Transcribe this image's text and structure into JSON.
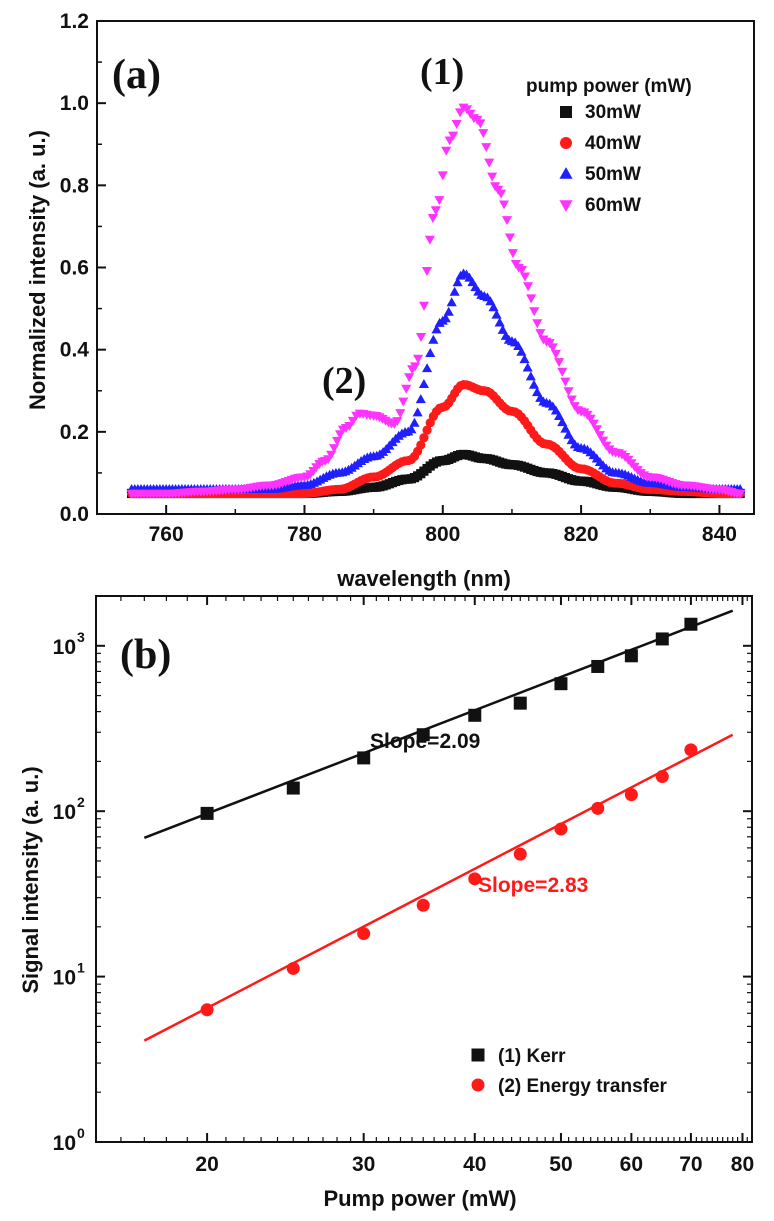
{
  "colors": {
    "black": "#111111",
    "red": "#ff1a1a",
    "blue": "#1f1fff",
    "magenta": "#ff33ff"
  },
  "chart_data": [
    {
      "type": "scatter",
      "panel_label": "(a)",
      "xlabel": "wavelength (nm)",
      "ylabel": "Normalized intensity (a. u.)",
      "xlim": [
        750,
        845
      ],
      "ylim": [
        0.0,
        1.2
      ],
      "xticks": [
        "760",
        "780",
        "800",
        "820",
        "840"
      ],
      "yticks": [
        "0.0",
        "0.2",
        "0.4",
        "0.6",
        "0.8",
        "1.0",
        "1.2"
      ],
      "xtick_values": [
        760,
        780,
        800,
        820,
        840
      ],
      "ytick_values": [
        0.0,
        0.2,
        0.4,
        0.6,
        0.8,
        1.0,
        1.2
      ],
      "legend": {
        "title": "pump power (mW)",
        "position": "top-right"
      },
      "annotations": [
        {
          "text": "(1)",
          "x": 803,
          "y": 1.06
        },
        {
          "text": "(2)",
          "x": 788,
          "y": 0.33
        }
      ],
      "series": [
        {
          "name": "30mW",
          "marker": "square",
          "color": "#111111",
          "x": [
            755,
            760,
            765,
            770,
            775,
            780,
            785,
            790,
            795,
            800,
            803,
            806,
            810,
            815,
            820,
            825,
            830,
            835,
            840,
            843
          ],
          "y": [
            0.05,
            0.05,
            0.05,
            0.05,
            0.05,
            0.05,
            0.055,
            0.065,
            0.085,
            0.13,
            0.145,
            0.135,
            0.12,
            0.1,
            0.08,
            0.065,
            0.055,
            0.05,
            0.05,
            0.05
          ]
        },
        {
          "name": "40mW",
          "marker": "circle",
          "color": "#ff1a1a",
          "x": [
            755,
            760,
            765,
            770,
            775,
            780,
            785,
            790,
            795,
            800,
            803,
            806,
            810,
            815,
            820,
            825,
            830,
            835,
            840,
            843
          ],
          "y": [
            0.05,
            0.05,
            0.05,
            0.05,
            0.05,
            0.05,
            0.06,
            0.09,
            0.13,
            0.26,
            0.315,
            0.3,
            0.25,
            0.17,
            0.11,
            0.075,
            0.06,
            0.055,
            0.05,
            0.05
          ]
        },
        {
          "name": "50mW",
          "marker": "triangle-up",
          "color": "#1f1fff",
          "x": [
            755,
            760,
            765,
            770,
            775,
            780,
            785,
            790,
            795,
            800,
            803,
            806,
            810,
            815,
            820,
            825,
            830,
            835,
            840,
            843
          ],
          "y": [
            0.06,
            0.06,
            0.06,
            0.06,
            0.06,
            0.07,
            0.1,
            0.14,
            0.2,
            0.47,
            0.585,
            0.53,
            0.42,
            0.27,
            0.16,
            0.1,
            0.075,
            0.065,
            0.06,
            0.06
          ]
        },
        {
          "name": "60mW",
          "marker": "triangle-down",
          "color": "#ff33ff",
          "x": [
            755,
            760,
            765,
            770,
            775,
            780,
            783,
            786,
            788,
            790,
            793,
            796,
            799,
            801,
            803,
            805,
            808,
            811,
            815,
            820,
            825,
            830,
            835,
            840,
            843
          ],
          "y": [
            0.05,
            0.05,
            0.055,
            0.06,
            0.07,
            0.09,
            0.13,
            0.21,
            0.245,
            0.24,
            0.22,
            0.36,
            0.74,
            0.91,
            0.99,
            0.96,
            0.79,
            0.6,
            0.42,
            0.25,
            0.15,
            0.09,
            0.07,
            0.06,
            0.05
          ]
        }
      ]
    },
    {
      "type": "scatter",
      "panel_label": "(b)",
      "xlabel": "Pump power (mW)",
      "ylabel": "Signal intensity (a. u.)",
      "xscale": "log",
      "yscale": "log",
      "xlim": [
        15,
        82
      ],
      "ylim": [
        1,
        2000
      ],
      "xticks": [
        "20",
        "30",
        "40",
        "50",
        "60",
        "70",
        "80"
      ],
      "xtick_values": [
        20,
        30,
        40,
        50,
        60,
        70,
        80
      ],
      "yticks": [
        {
          "base": "10",
          "exp": "0",
          "value": 1
        },
        {
          "base": "10",
          "exp": "1",
          "value": 10
        },
        {
          "base": "10",
          "exp": "2",
          "value": 100
        },
        {
          "base": "10",
          "exp": "3",
          "value": 1000
        }
      ],
      "legend": {
        "position": "bottom-right"
      },
      "series": [
        {
          "name": "(1) Kerr",
          "marker": "square",
          "color": "#111111",
          "x": [
            20,
            25,
            30,
            35,
            40,
            45,
            50,
            55,
            60,
            65,
            70
          ],
          "y": [
            97,
            138,
            210,
            290,
            380,
            450,
            590,
            750,
            870,
            1100,
            1350
          ],
          "fit": {
            "label": "Slope=2.09",
            "x": [
              17,
              78
            ],
            "y": [
              69,
              1630
            ]
          }
        },
        {
          "name": "(2) Energy transfer",
          "marker": "circle",
          "color": "#ff1a1a",
          "x": [
            20,
            25,
            30,
            35,
            40,
            45,
            50,
            55,
            60,
            65,
            70
          ],
          "y": [
            6.3,
            11.2,
            18.2,
            27,
            39,
            55,
            78,
            104,
            126,
            162,
            235
          ],
          "fit": {
            "label": "Slope=2.83",
            "x": [
              17,
              78
            ],
            "y": [
              4.1,
              290
            ]
          }
        }
      ]
    }
  ]
}
